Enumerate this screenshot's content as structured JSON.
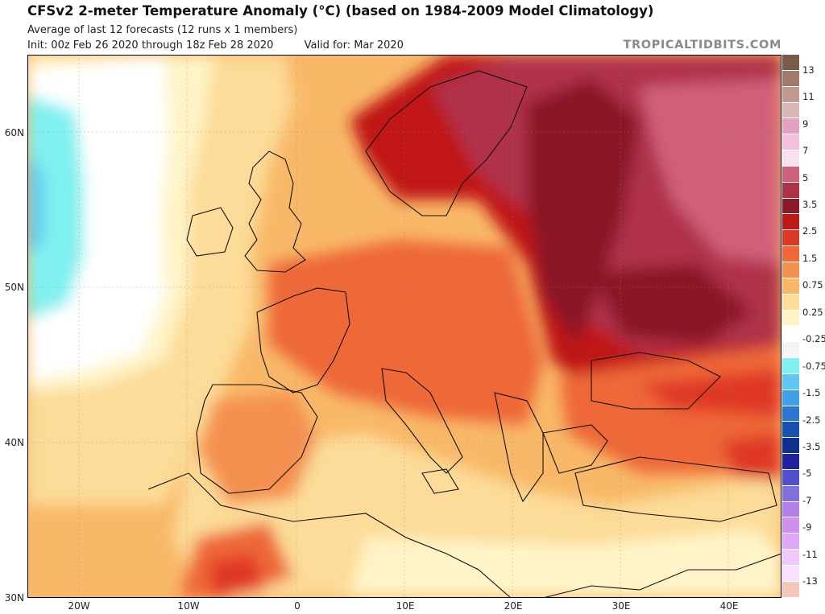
{
  "header": {
    "title": "CFSv2 2-meter Temperature Anomaly (°C) (based on 1984-2009 Model Climatology)",
    "subtitle": "Average of last 12 forecasts (12 runs x 1 members)",
    "init": "Init: 00z Feb 26 2020 through 18z Feb 28 2020",
    "valid": "Valid for: Mar 2020",
    "brand": "TROPICALTIDBITS.COM"
  },
  "map": {
    "lat_labels": [
      "60N",
      "50N",
      "40N",
      "30N"
    ],
    "lon_labels": [
      "20W",
      "10W",
      "0",
      "10E",
      "20E",
      "30E",
      "40E"
    ],
    "lon_range": [
      -25,
      45
    ],
    "lat_range": [
      30,
      65
    ]
  },
  "colorbar": {
    "labels": [
      "13",
      "11",
      "9",
      "7",
      "5",
      "3.5",
      "2.5",
      "1.5",
      "0.75",
      "0.25",
      "-0.25",
      "-0.75",
      "-1.5",
      "-2.5",
      "-3.5",
      "-5",
      "-7",
      "-9",
      "-11",
      "-13"
    ],
    "colors": [
      "#7a5a48",
      "#a07a6c",
      "#c09a90",
      "#d8b8b4",
      "#e6a0c0",
      "#f2c0dc",
      "#f8e0f0",
      "#d0607a",
      "#b03048",
      "#8a1828",
      "#c01818",
      "#e03828",
      "#ee6838",
      "#f49050",
      "#f8b868",
      "#fcdc98",
      "#fff4c8",
      "#ffffff",
      "#f4f4f4",
      "#80f0f0",
      "#60c8f0",
      "#40a0e8",
      "#2878d0",
      "#1850b0",
      "#103090",
      "#2020a0",
      "#5050d0",
      "#8070e0",
      "#b080e8",
      "#d090f0",
      "#e0a8f8",
      "#f0c8fc",
      "#f8e0fe",
      "#f4c8b8"
    ]
  }
}
